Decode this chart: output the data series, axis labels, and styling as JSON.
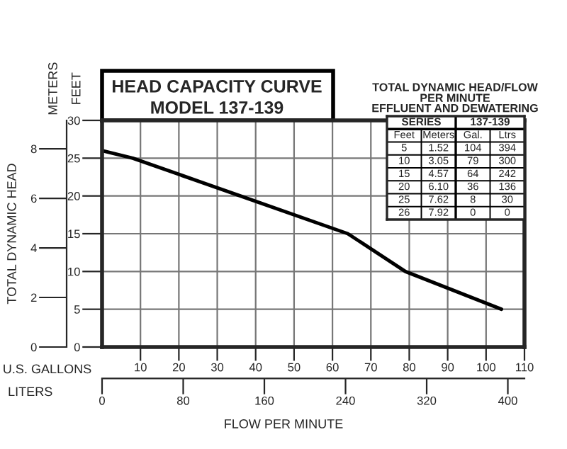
{
  "chart_data": [
    {
      "type": "line",
      "title": "HEAD CAPACITY CURVE",
      "subtitle": "MODEL 137-139",
      "xlabel": "U.S. GALLONS",
      "x2label": "LITERS",
      "ylabel": "FEET",
      "y2label": "METERS",
      "annotations": [
        "TOTAL DYNAMIC HEAD",
        "FLOW PER MINUTE"
      ],
      "x": [
        0,
        8,
        36,
        64,
        79,
        104
      ],
      "series": [
        {
          "color": "#000000",
          "values": [
            26,
            25,
            20,
            15,
            10,
            5
          ]
        }
      ],
      "xlim": [
        0,
        110
      ],
      "xticks": [
        10,
        20,
        30,
        40,
        50,
        60,
        70,
        80,
        90,
        100,
        110
      ],
      "x2lim": [
        0,
        416.4
      ],
      "x2ticks": [
        0,
        80,
        160,
        240,
        320,
        400
      ],
      "ylim": [
        0,
        30
      ],
      "yticks": [
        0,
        5,
        10,
        15,
        20,
        25,
        30
      ],
      "y2lim": [
        0,
        9.144
      ],
      "y2ticks": [
        0,
        2,
        4,
        6,
        8
      ],
      "grid": true,
      "line_style": "solid",
      "marker": "none"
    },
    {
      "type": "other",
      "title": "TOTAL DYNAMIC HEAD/FLOW\nPER MINUTE",
      "subtitle": "EFFLUENT AND DEWATERING",
      "annotations": [
        "SERIES",
        "137-139",
        "Feet",
        "Meters",
        "Gal.",
        "Ltrs",
        "5",
        "1.52",
        "104",
        "394",
        "10",
        "3.05",
        "79",
        "300",
        "15",
        "4.57",
        "64",
        "242",
        "20",
        "6.10",
        "36",
        "136",
        "25",
        "7.62",
        "8",
        "30",
        "26",
        "7.92",
        "0",
        "0"
      ]
    }
  ]
}
